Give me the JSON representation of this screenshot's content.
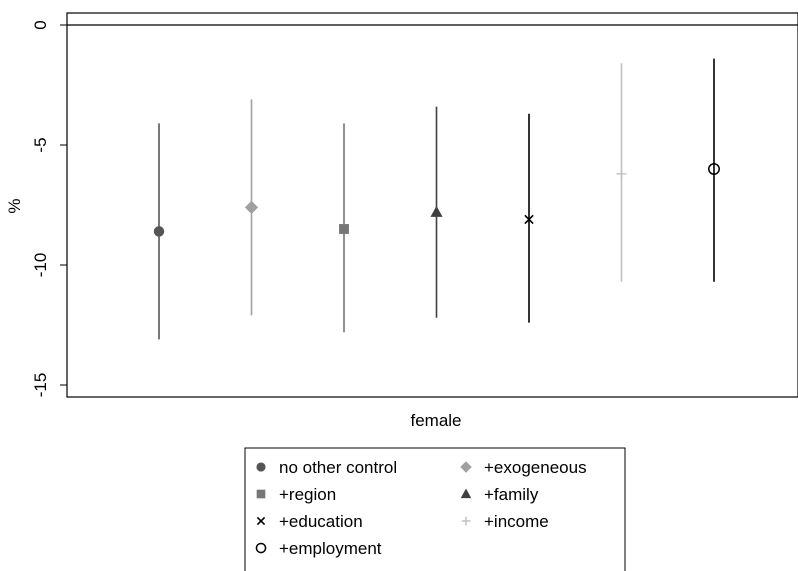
{
  "chart_data": {
    "type": "scatter",
    "subtype": "coefficient-plot-with-confidence-intervals",
    "title": "",
    "xlabel": "female",
    "ylabel": "%",
    "ylim": [
      -15.5,
      0.5
    ],
    "yticks": [
      0,
      -5,
      -10,
      -15
    ],
    "ytick_labels": [
      "0",
      "-5",
      "-10",
      "-15"
    ],
    "reference_line": 0,
    "grid": false,
    "legend_position": "bottom",
    "series": [
      {
        "name": "no other control",
        "marker": "circle-filled",
        "color": "#555555",
        "estimate": -8.6,
        "ci": [
          -13.1,
          -4.1
        ]
      },
      {
        "name": "+exogeneous",
        "marker": "diamond-filled",
        "color": "#a0a0a0",
        "estimate": -7.6,
        "ci": [
          -12.1,
          -3.1
        ]
      },
      {
        "name": "+region",
        "marker": "square-filled",
        "color": "#777777",
        "estimate": -8.5,
        "ci": [
          -12.8,
          -4.1
        ]
      },
      {
        "name": "+family",
        "marker": "triangle-filled",
        "color": "#404040",
        "estimate": -7.8,
        "ci": [
          -12.2,
          -3.4
        ]
      },
      {
        "name": "+education",
        "marker": "x",
        "color": "#000000",
        "estimate": -8.1,
        "ci": [
          -12.4,
          -3.7
        ]
      },
      {
        "name": "+income",
        "marker": "plus",
        "color": "#c0c0c0",
        "estimate": -6.2,
        "ci": [
          -10.7,
          -1.6
        ]
      },
      {
        "name": "+employment",
        "marker": "circle-hollow",
        "color": "#000000",
        "estimate": -6.0,
        "ci": [
          -10.7,
          -1.4
        ]
      }
    ]
  }
}
